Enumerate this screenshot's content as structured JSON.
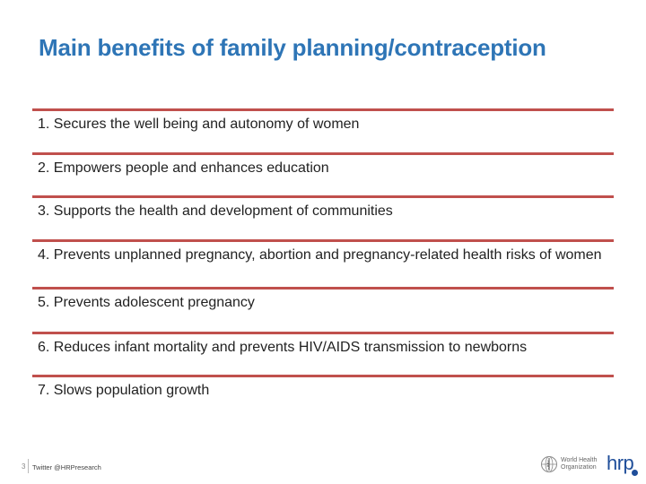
{
  "slide": {
    "title": "Main benefits of family planning/contraception",
    "items": [
      "1. Secures the well being and autonomy of women",
      "2. Empowers people and enhances education",
      "3. Supports the health and development of communities",
      "4. Prevents unplanned pregnancy, abortion and pregnancy-related health risks of women",
      "5. Prevents adolescent pregnancy",
      "6. Reduces infant mortality and prevents HIV/AIDS transmission to newborns",
      "7. Slows population growth"
    ],
    "accent_color": "#c0504d",
    "title_color": "#2e75b6"
  },
  "footer": {
    "page_number": "3",
    "twitter": "Twitter @HRPresearch",
    "who_line1": "World Health",
    "who_line2": "Organization",
    "logo": "hrp"
  }
}
